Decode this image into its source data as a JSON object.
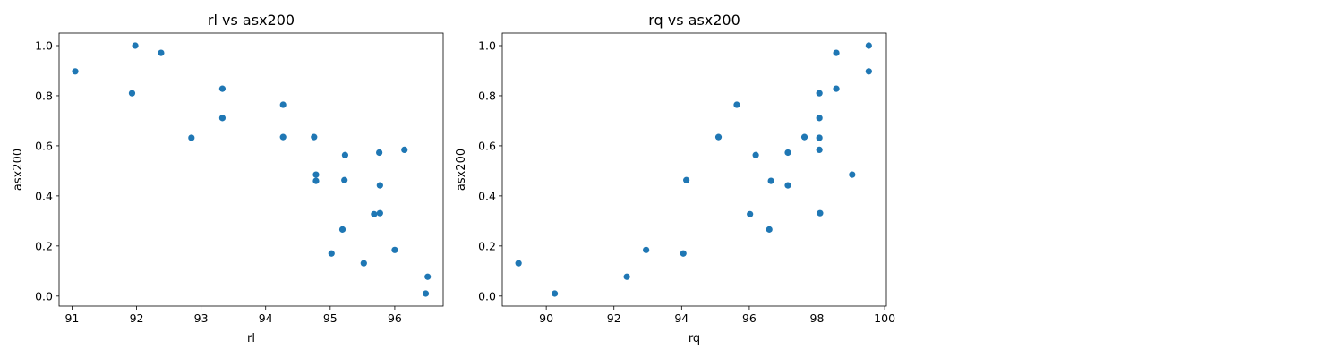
{
  "chart_data": [
    {
      "type": "scatter",
      "title": "rl vs asx200",
      "xlabel": "rl",
      "ylabel": "asx200",
      "xlim": [
        90.8,
        96.75
      ],
      "ylim": [
        -0.04,
        1.05
      ],
      "xticks": [
        "91",
        "92",
        "93",
        "94",
        "95",
        "96"
      ],
      "yticks": [
        "0.0",
        "0.2",
        "0.4",
        "0.6",
        "0.8",
        "1.0"
      ],
      "color": "#1f77b4",
      "points": [
        {
          "x": 91.05,
          "y": 0.897
        },
        {
          "x": 91.98,
          "y": 1.0
        },
        {
          "x": 91.93,
          "y": 0.81
        },
        {
          "x": 92.38,
          "y": 0.971
        },
        {
          "x": 92.85,
          "y": 0.632
        },
        {
          "x": 93.33,
          "y": 0.828
        },
        {
          "x": 93.33,
          "y": 0.711
        },
        {
          "x": 94.27,
          "y": 0.764
        },
        {
          "x": 94.27,
          "y": 0.635
        },
        {
          "x": 94.75,
          "y": 0.635
        },
        {
          "x": 94.78,
          "y": 0.485
        },
        {
          "x": 94.78,
          "y": 0.46
        },
        {
          "x": 95.23,
          "y": 0.563
        },
        {
          "x": 95.22,
          "y": 0.463
        },
        {
          "x": 95.76,
          "y": 0.573
        },
        {
          "x": 95.77,
          "y": 0.442
        },
        {
          "x": 96.15,
          "y": 0.584
        },
        {
          "x": 95.68,
          "y": 0.327
        },
        {
          "x": 95.77,
          "y": 0.331
        },
        {
          "x": 95.19,
          "y": 0.266
        },
        {
          "x": 95.02,
          "y": 0.17
        },
        {
          "x": 95.52,
          "y": 0.131
        },
        {
          "x": 96.0,
          "y": 0.184
        },
        {
          "x": 96.51,
          "y": 0.077
        },
        {
          "x": 96.48,
          "y": 0.01
        }
      ]
    },
    {
      "type": "scatter",
      "title": "rq vs asx200",
      "xlabel": "rq",
      "ylabel": "asx200",
      "xlim": [
        88.7,
        100.05
      ],
      "ylim": [
        -0.04,
        1.05
      ],
      "xticks": [
        "90",
        "92",
        "94",
        "96",
        "98",
        "100"
      ],
      "yticks": [
        "0.0",
        "0.2",
        "0.4",
        "0.6",
        "0.8",
        "1.0"
      ],
      "color": "#1f77b4",
      "points": [
        {
          "x": 99.53,
          "y": 1.0
        },
        {
          "x": 98.57,
          "y": 0.971
        },
        {
          "x": 99.53,
          "y": 0.897
        },
        {
          "x": 98.57,
          "y": 0.828
        },
        {
          "x": 98.07,
          "y": 0.81
        },
        {
          "x": 95.63,
          "y": 0.764
        },
        {
          "x": 98.07,
          "y": 0.711
        },
        {
          "x": 95.09,
          "y": 0.635
        },
        {
          "x": 97.63,
          "y": 0.635
        },
        {
          "x": 98.07,
          "y": 0.632
        },
        {
          "x": 98.07,
          "y": 0.584
        },
        {
          "x": 97.14,
          "y": 0.573
        },
        {
          "x": 96.19,
          "y": 0.563
        },
        {
          "x": 99.04,
          "y": 0.485
        },
        {
          "x": 94.14,
          "y": 0.463
        },
        {
          "x": 96.64,
          "y": 0.46
        },
        {
          "x": 97.14,
          "y": 0.442
        },
        {
          "x": 96.02,
          "y": 0.327
        },
        {
          "x": 98.09,
          "y": 0.331
        },
        {
          "x": 96.59,
          "y": 0.266
        },
        {
          "x": 92.95,
          "y": 0.184
        },
        {
          "x": 94.05,
          "y": 0.17
        },
        {
          "x": 89.18,
          "y": 0.131
        },
        {
          "x": 92.38,
          "y": 0.077
        },
        {
          "x": 90.25,
          "y": 0.01
        }
      ]
    }
  ]
}
